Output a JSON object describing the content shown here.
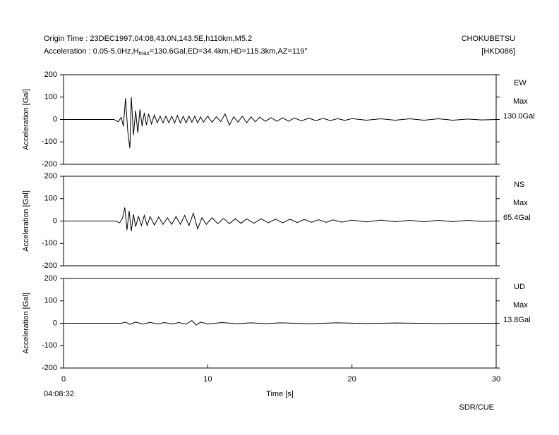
{
  "header": {
    "origin_time": "Origin Time : 23DEC1997,04:08,43.0N,143.5E,h110km,M5.2",
    "acceleration_prefix": "Acceleration : 0.05-5.0Hz,H",
    "acceleration_sub": "max",
    "acceleration_suffix": "=130.6Gal,ED=34.4km,HD=115.3km,AZ=119°",
    "station": "CHOKUBETSU",
    "station_code": "[HKD086]"
  },
  "footer": "SDR/CUE",
  "chart_data": [
    {
      "type": "line",
      "y_label": "Acceleration [Gal]",
      "component": "EW",
      "max_label": "Max",
      "max_value": "130.0Gal",
      "color": "#000000",
      "xlim": [
        0,
        30
      ],
      "ylim": [
        -200,
        200
      ],
      "yticks": [
        -200,
        -100,
        0,
        100,
        200
      ],
      "x": [
        0,
        3.5,
        3.8,
        4.0,
        4.15,
        4.3,
        4.45,
        4.6,
        4.7,
        4.85,
        5.0,
        5.15,
        5.3,
        5.45,
        5.6,
        5.75,
        5.9,
        6.1,
        6.3,
        6.5,
        6.7,
        6.9,
        7.1,
        7.3,
        7.5,
        7.7,
        7.9,
        8.1,
        8.3,
        8.5,
        8.7,
        8.9,
        9.1,
        9.3,
        9.5,
        9.7,
        10.0,
        10.3,
        10.6,
        10.9,
        11.2,
        11.5,
        11.8,
        12.1,
        12.4,
        12.7,
        13.0,
        13.3,
        13.6,
        14.0,
        14.4,
        14.8,
        15.2,
        15.6,
        16.0,
        16.5,
        17.0,
        17.5,
        18.0,
        18.5,
        19.0,
        19.5,
        20,
        21,
        22,
        23,
        24,
        25,
        26,
        27,
        28,
        29,
        30
      ],
      "values": [
        0,
        0,
        -10,
        10,
        -30,
        95,
        -50,
        -128,
        100,
        -70,
        40,
        -60,
        45,
        -30,
        30,
        -25,
        25,
        -20,
        20,
        -15,
        15,
        -15,
        15,
        -15,
        15,
        -15,
        18,
        -15,
        15,
        -15,
        15,
        -12,
        15,
        -15,
        12,
        -12,
        15,
        -12,
        12,
        -10,
        25,
        -25,
        12,
        -12,
        15,
        -15,
        12,
        -10,
        10,
        -8,
        8,
        -8,
        8,
        -8,
        7,
        -6,
        6,
        -5,
        5,
        -5,
        4,
        -4,
        4,
        -3,
        3,
        -3,
        3,
        -3,
        3,
        -3,
        2,
        -2,
        0
      ]
    },
    {
      "type": "line",
      "y_label": "Acceleration [Gal]",
      "component": "NS",
      "max_label": "Max",
      "max_value": "65.4Gal",
      "color": "#000000",
      "xlim": [
        0,
        30
      ],
      "ylim": [
        -200,
        200
      ],
      "yticks": [
        -200,
        -100,
        0,
        100,
        200
      ],
      "x": [
        0,
        3.6,
        3.9,
        4.1,
        4.25,
        4.4,
        4.55,
        4.7,
        4.85,
        5.0,
        5.2,
        5.4,
        5.6,
        5.8,
        6.0,
        6.3,
        6.6,
        6.9,
        7.2,
        7.5,
        7.8,
        8.1,
        8.4,
        8.7,
        9.0,
        9.3,
        9.6,
        9.9,
        10.3,
        10.7,
        11.1,
        11.5,
        11.9,
        12.3,
        12.7,
        13.2,
        13.7,
        14.2,
        14.7,
        15.2,
        15.7,
        16.2,
        16.7,
        17.2,
        17.7,
        18.2,
        18.7,
        19.3,
        20,
        21,
        22,
        23,
        24,
        25,
        26,
        27,
        28,
        29,
        30
      ],
      "values": [
        0,
        0,
        -8,
        15,
        60,
        -40,
        45,
        -45,
        30,
        -25,
        20,
        -20,
        25,
        -20,
        20,
        -18,
        18,
        -15,
        15,
        -15,
        20,
        -15,
        25,
        -20,
        35,
        -35,
        15,
        -15,
        15,
        -12,
        12,
        -12,
        10,
        -10,
        10,
        -10,
        10,
        -8,
        8,
        -8,
        8,
        -7,
        7,
        -6,
        6,
        -6,
        5,
        -5,
        4,
        -4,
        4,
        -3,
        3,
        -3,
        3,
        -3,
        3,
        -2,
        0
      ]
    },
    {
      "type": "line",
      "y_label": "Acceleration [Gal]",
      "component": "UD",
      "max_label": "Max",
      "max_value": "13.8Gal",
      "color": "#000000",
      "xlim": [
        0,
        30
      ],
      "ylim": [
        -200,
        200
      ],
      "yticks": [
        -200,
        -100,
        0,
        100,
        200
      ],
      "xticks": [
        0,
        10,
        20,
        30
      ],
      "x_label": "Time [s]",
      "start_time": "04:08:32",
      "x": [
        0,
        4,
        4.3,
        4.6,
        5.0,
        5.5,
        6,
        6.5,
        7,
        7.5,
        8,
        8.5,
        8.9,
        9.2,
        9.5,
        10,
        11,
        12,
        13,
        14,
        15,
        17,
        19,
        21,
        23,
        26,
        30
      ],
      "values": [
        0,
        0,
        5,
        -5,
        5,
        -4,
        4,
        -3,
        3,
        -3,
        3,
        -4,
        12,
        -8,
        5,
        -3,
        3,
        -2,
        2,
        -2,
        2,
        -2,
        2,
        -1,
        1,
        -1,
        0
      ]
    }
  ]
}
